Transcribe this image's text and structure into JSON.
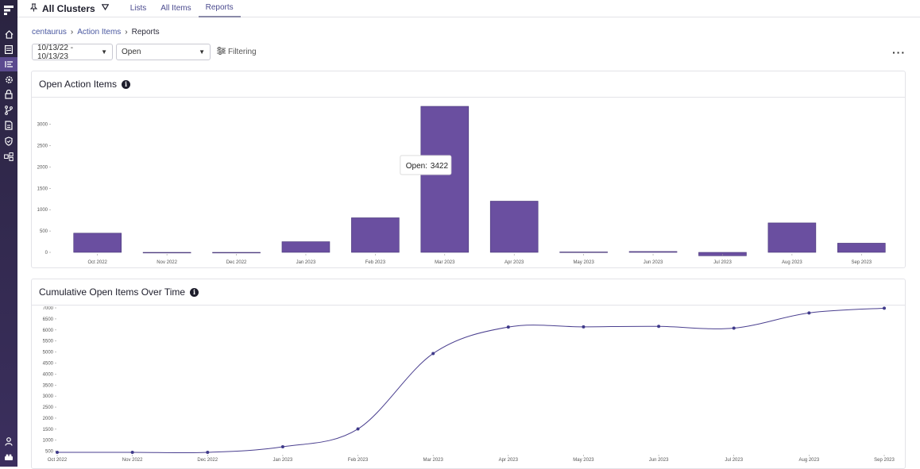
{
  "colors": {
    "accent": "#6a4fa0",
    "sidebar": "#2a2440",
    "link": "#4a58a0"
  },
  "topbar": {
    "cluster_label": "All Clusters",
    "tabs": [
      {
        "label": "Lists"
      },
      {
        "label": "All Items"
      },
      {
        "label": "Reports"
      }
    ]
  },
  "breadcrumb": {
    "items": [
      "centaurus",
      "Action Items",
      "Reports"
    ]
  },
  "filters": {
    "date_range": "10/13/22 - 10/13/23",
    "status": "Open",
    "filtering_label": "Filtering"
  },
  "sidebar": {
    "icons": [
      "logo-icon",
      "home-icon",
      "list-icon",
      "action-items-icon",
      "settings-icon",
      "lock-icon",
      "branch-icon",
      "report-icon",
      "shield-icon",
      "integrations-icon",
      "user-icon",
      "team-icon"
    ]
  },
  "bar_card": {
    "title": "Open Action Items",
    "tooltip": {
      "label": "Open:",
      "value": "3422"
    }
  },
  "line_card": {
    "title": "Cumulative Open Items Over Time"
  },
  "chart_data": [
    {
      "type": "bar",
      "title": "Open Action Items",
      "categories": [
        "Oct 2022",
        "Nov 2022",
        "Dec 2022",
        "Jan 2023",
        "Feb 2023",
        "Mar 2023",
        "Apr 2023",
        "May 2023",
        "Jun 2023",
        "Jul 2023",
        "Aug 2023",
        "Sep 2023"
      ],
      "values": [
        450,
        0,
        0,
        250,
        810,
        3422,
        1200,
        10,
        20,
        -80,
        690,
        215
      ],
      "yticks": [
        0,
        500,
        1000,
        1500,
        2000,
        2500,
        3000
      ],
      "ylim": [
        -100,
        3450
      ],
      "xlabel": "",
      "ylabel": ""
    },
    {
      "type": "line",
      "title": "Cumulative Open Items Over Time",
      "categories": [
        "Oct 2022",
        "Nov 2022",
        "Dec 2022",
        "Jan 2023",
        "Feb 2023",
        "Mar 2023",
        "Apr 2023",
        "May 2023",
        "Jun 2023",
        "Jul 2023",
        "Aug 2023",
        "Sep 2023"
      ],
      "values": [
        450,
        450,
        450,
        700,
        1510,
        4932,
        6132,
        6142,
        6162,
        6082,
        6772,
        6987
      ],
      "yticks": [
        500,
        1000,
        1500,
        2000,
        2500,
        3000,
        3500,
        4000,
        4500,
        5000,
        5500,
        6000,
        6500,
        7000
      ],
      "ylim": [
        450,
        7000
      ],
      "xlabel": "",
      "ylabel": ""
    }
  ]
}
